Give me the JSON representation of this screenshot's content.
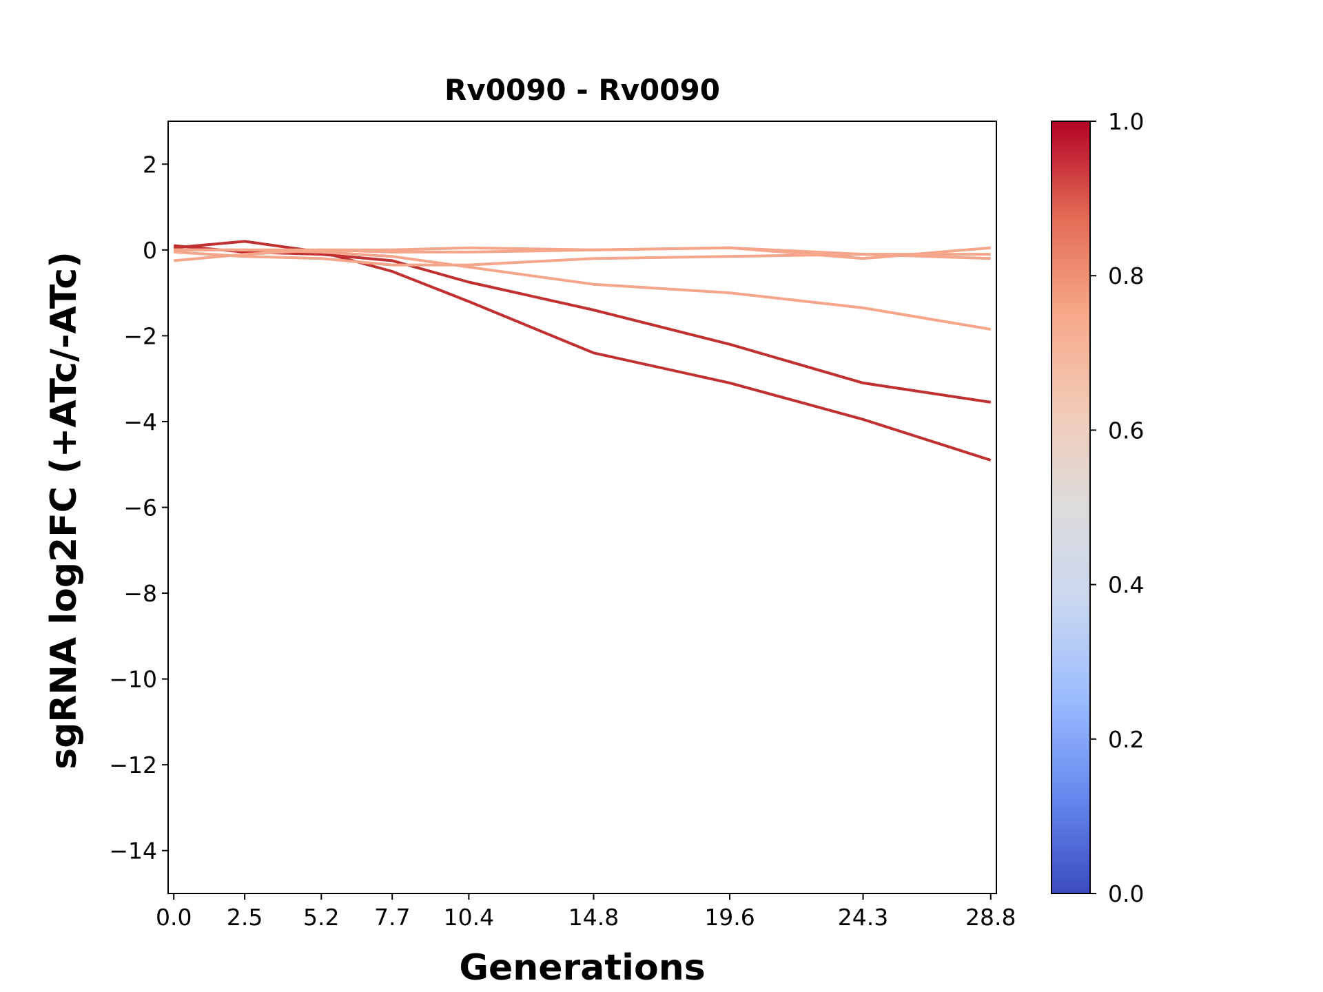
{
  "chart_data": {
    "type": "line",
    "title": "Rv0090 - Rv0090",
    "xlabel": "Generations",
    "ylabel": "sgRNA log2FC (+ATc/-ATc)",
    "x": [
      0.0,
      2.5,
      5.2,
      7.7,
      10.4,
      14.8,
      19.6,
      24.3,
      28.8
    ],
    "xticklabels": [
      "0.0",
      "2.5",
      "5.2",
      "7.7",
      "10.4",
      "14.8",
      "19.6",
      "24.3",
      "28.8"
    ],
    "xlim": [
      -0.2,
      29.0
    ],
    "ylim": [
      -15,
      3
    ],
    "yticks": [
      2,
      0,
      -2,
      -4,
      -6,
      -8,
      -10,
      -12,
      -14
    ],
    "yticklabels": [
      "2",
      "0",
      "−2",
      "−4",
      "−6",
      "−8",
      "−10",
      "−12",
      "−14"
    ],
    "grid": false,
    "colormap": "coolwarm",
    "colorbar": {
      "range": [
        0.0,
        1.0
      ],
      "ticks": [
        0.0,
        0.2,
        0.4,
        0.6,
        0.8,
        1.0
      ],
      "ticklabels": [
        "0.0",
        "0.2",
        "0.4",
        "0.6",
        "0.8",
        "1.0"
      ],
      "gradient": [
        "#3b4cc0",
        "#6688ee",
        "#9abbff",
        "#c9d7f0",
        "#dddcdc",
        "#f2cbb7",
        "#f7a889",
        "#e36c55",
        "#b40426"
      ]
    },
    "series": [
      {
        "color": "#c03030",
        "values": [
          0.05,
          0.2,
          -0.05,
          -0.5,
          -1.2,
          -2.4,
          -3.1,
          -3.95,
          -4.9
        ]
      },
      {
        "color": "#c03030",
        "values": [
          0.1,
          -0.05,
          -0.1,
          -0.25,
          -0.75,
          -1.4,
          -2.2,
          -3.1,
          -3.55
        ]
      },
      {
        "color": "#f4a58a",
        "values": [
          0.0,
          0.0,
          -0.05,
          -0.15,
          -0.4,
          -0.8,
          -1.0,
          -1.35,
          -1.85
        ]
      },
      {
        "color": "#f4a58a",
        "values": [
          -0.25,
          -0.1,
          0.0,
          0.0,
          0.05,
          0.0,
          0.05,
          -0.1,
          -0.2
        ]
      },
      {
        "color": "#f4a58a",
        "values": [
          -0.05,
          -0.15,
          -0.2,
          -0.35,
          -0.35,
          -0.2,
          -0.15,
          -0.1,
          -0.1
        ]
      },
      {
        "color": "#f4a58a",
        "values": [
          0.0,
          0.0,
          0.0,
          -0.05,
          -0.05,
          0.0,
          0.05,
          -0.2,
          0.05
        ]
      }
    ]
  }
}
